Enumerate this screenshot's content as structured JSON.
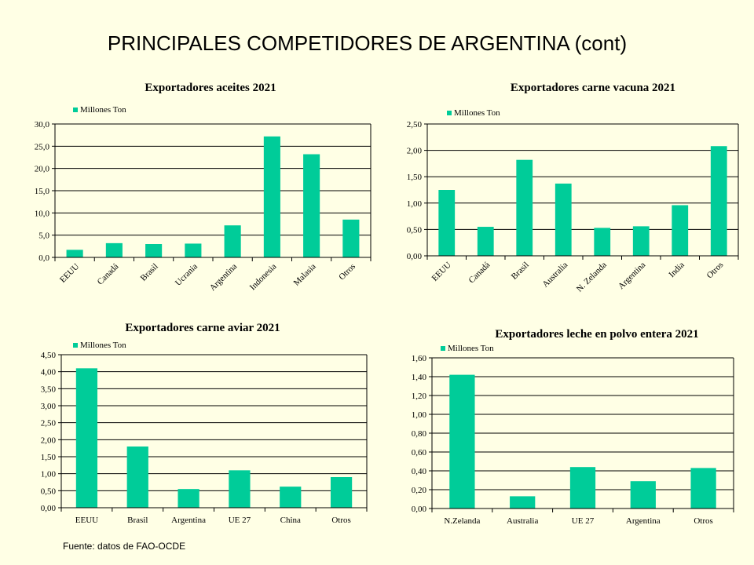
{
  "page": {
    "title": "PRINCIPALES COMPETIDORES DE ARGENTINA (cont)",
    "source": "Fuente: datos de  FAO-OCDE"
  },
  "colors": {
    "bar": "#00cc99",
    "grid": "#000000",
    "background": "#ffffe5"
  },
  "chart_data": [
    {
      "type": "bar",
      "title": "Exportadores aceites 2021",
      "categories": [
        "EEUU",
        "Canadá",
        "Brasil",
        "Ucrania",
        "Argentina",
        "Indonesia",
        "Malasia",
        "Otros"
      ],
      "series": [
        {
          "name": "Millones Ton",
          "values": [
            1.7,
            3.2,
            3.0,
            3.1,
            7.2,
            27.2,
            23.2,
            8.5
          ]
        }
      ],
      "ylim": [
        0,
        30
      ],
      "yticks": [
        "0,0",
        "5,0",
        "10,0",
        "15,0",
        "20,0",
        "25,0",
        "30,0"
      ],
      "rotate_xlabels": true,
      "grid": true,
      "legend": "top-left"
    },
    {
      "type": "bar",
      "title": "Exportadores carne vacuna 2021",
      "categories": [
        "EEUU",
        "Canadá",
        "Brasil",
        "Australia",
        "N. Zelanda",
        "Argentina",
        "India",
        "Otros"
      ],
      "series": [
        {
          "name": "Millones Ton",
          "values": [
            1.25,
            0.55,
            1.82,
            1.37,
            0.53,
            0.56,
            0.96,
            2.08
          ]
        }
      ],
      "ylim": [
        0,
        2.5
      ],
      "yticks": [
        "0,00",
        "0,50",
        "1,00",
        "1,50",
        "2,00",
        "2,50"
      ],
      "rotate_xlabels": true,
      "grid": true,
      "legend": "top-left"
    },
    {
      "type": "bar",
      "title": "Exportadores carne aviar 2021",
      "categories": [
        "EEUU",
        "Brasil",
        "Argentina",
        "UE 27",
        "China",
        "Otros"
      ],
      "series": [
        {
          "name": "Millones Ton",
          "values": [
            4.1,
            1.8,
            0.55,
            1.1,
            0.62,
            0.9
          ]
        }
      ],
      "ylim": [
        0,
        4.5
      ],
      "yticks": [
        "0,00",
        "0,50",
        "1,00",
        "1,50",
        "2,00",
        "2,50",
        "3,00",
        "3,50",
        "4,00",
        "4,50"
      ],
      "rotate_xlabels": false,
      "grid": true,
      "legend": "top-left"
    },
    {
      "type": "bar",
      "title": "Exportadores leche en polvo entera 2021",
      "categories": [
        "N.Zelanda",
        "Australia",
        "UE 27",
        "Argentina",
        "Otros"
      ],
      "series": [
        {
          "name": "Millones Ton",
          "values": [
            1.42,
            0.13,
            0.44,
            0.29,
            0.43
          ]
        }
      ],
      "ylim": [
        0,
        1.6
      ],
      "yticks": [
        "0,00",
        "0,20",
        "0,40",
        "0,60",
        "0,80",
        "1,00",
        "1,20",
        "1,40",
        "1,60"
      ],
      "rotate_xlabels": false,
      "grid": true,
      "legend": "top-left"
    }
  ]
}
